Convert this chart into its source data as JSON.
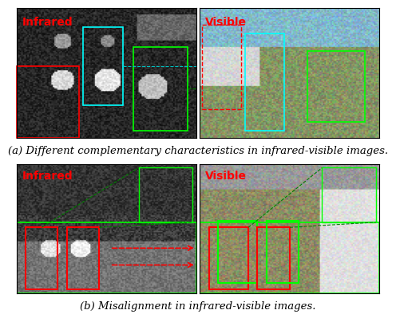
{
  "caption_a": "(a) Different complementary characteristics in infrared-visible images.",
  "caption_b": "(b) Misalignment in infrared-visible images.",
  "label_infrared": "Infrared",
  "label_visible": "Visible",
  "caption_fontsize": 9.5,
  "label_fontsize": 10,
  "fig_bg": "#ffffff"
}
